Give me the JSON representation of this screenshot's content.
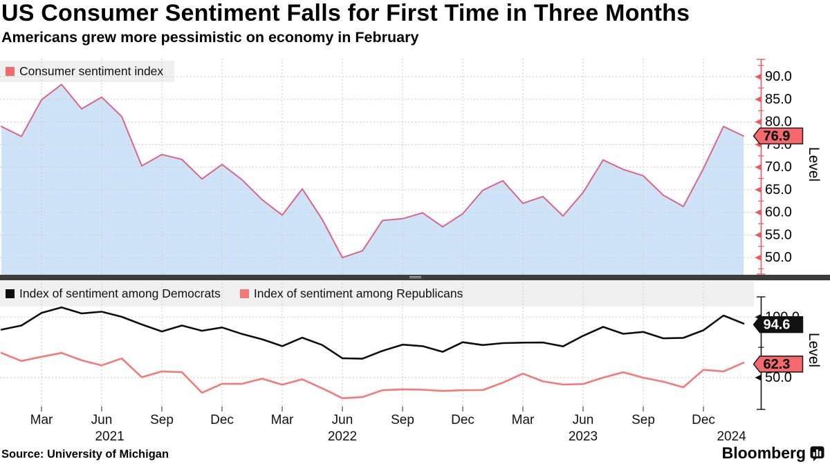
{
  "header": {
    "title": "US Consumer Sentiment Falls for First Time in Three Months",
    "subtitle": "Americans grew more pessimistic on economy in February"
  },
  "source_label": "Source: University of Michigan",
  "branding": {
    "logo_text": "Bloomberg",
    "logo_icon": "bloomberg-chart-bubble-icon"
  },
  "colors": {
    "sentiment_line": "#de6383",
    "sentiment_fill": "#cfe3f8",
    "democrats_line": "#0d0d0d",
    "republicans_line": "#f57878",
    "axis_red": "#ee575b",
    "axis_black": "#111111",
    "badge_red_bg": "#f3696c",
    "badge_black_bg": "#111111",
    "grid_line": "#c9c9c9",
    "legend_bg": "#f0f0f0",
    "divider": "#3d3d3d"
  },
  "x_axis": {
    "start": "2021-01",
    "end": "2024-02",
    "frequency": "monthly",
    "quarter_ticks": [
      {
        "month_index": 2,
        "label": "Mar"
      },
      {
        "month_index": 5,
        "label": "Jun"
      },
      {
        "month_index": 8,
        "label": "Sep"
      },
      {
        "month_index": 11,
        "label": "Dec"
      },
      {
        "month_index": 14,
        "label": "Mar"
      },
      {
        "month_index": 17,
        "label": "Jun"
      },
      {
        "month_index": 20,
        "label": "Sep"
      },
      {
        "month_index": 23,
        "label": "Dec"
      },
      {
        "month_index": 26,
        "label": "Mar"
      },
      {
        "month_index": 29,
        "label": "Jun"
      },
      {
        "month_index": 32,
        "label": "Sep"
      },
      {
        "month_index": 35,
        "label": "Dec"
      }
    ],
    "year_labels": [
      {
        "month_index": 5.4,
        "label": "2021"
      },
      {
        "month_index": 17.0,
        "label": "2022"
      },
      {
        "month_index": 29.0,
        "label": "2023"
      },
      {
        "month_index": 36.4,
        "label": "2024"
      }
    ]
  },
  "chart_data": [
    {
      "type": "area",
      "legend_label": "Consumer sentiment index",
      "ylabel": "Level",
      "ylim": [
        46.2,
        94.0
      ],
      "y_ticks": [
        50,
        55,
        60,
        65,
        70,
        75,
        80,
        85,
        90
      ],
      "y_minor_ticks": [
        47.5,
        52.5,
        57.5,
        62.5,
        67.5,
        72.5,
        77.5,
        82.5,
        87.5,
        92.5
      ],
      "last_value_badge": "76.9",
      "values": [
        79.0,
        76.8,
        84.9,
        88.3,
        82.9,
        85.5,
        81.2,
        70.3,
        72.8,
        71.7,
        67.4,
        70.6,
        67.2,
        62.8,
        59.4,
        65.2,
        58.4,
        50.0,
        51.5,
        58.2,
        58.6,
        59.9,
        56.8,
        59.7,
        64.9,
        67.0,
        62.0,
        63.5,
        59.2,
        64.4,
        71.6,
        69.5,
        68.1,
        63.8,
        61.3,
        69.7,
        79.0,
        76.9
      ]
    },
    {
      "type": "line",
      "ylabel": "Level",
      "ylim": [
        26.6,
        108.7
      ],
      "y_ticks": [
        50,
        100
      ],
      "y_minor_ticks": [
        75
      ],
      "series": [
        {
          "name": "Index of sentiment among Democrats",
          "color_key": "democrats_line",
          "badge": "94.6",
          "badge_bg_key": "badge_black_bg",
          "badge_fg": "#ffffff",
          "values": [
            89.6,
            93.0,
            103.4,
            108.0,
            103.0,
            104.4,
            100.2,
            93.9,
            88.1,
            93.0,
            88.7,
            91.4,
            86.0,
            81.6,
            76.0,
            83.0,
            76.9,
            66.0,
            65.6,
            72.1,
            77.2,
            76.0,
            71.3,
            79.2,
            76.9,
            78.5,
            78.9,
            79.0,
            75.8,
            84.5,
            91.9,
            86.2,
            87.7,
            82.4,
            82.8,
            89.1,
            101.3,
            94.6
          ]
        },
        {
          "name": "Index of sentiment among Republicans",
          "color_key": "republicans_line",
          "badge": "62.3",
          "badge_bg_key": "badge_red_bg",
          "badge_fg": "#000000",
          "values": [
            70.4,
            63.7,
            67.2,
            70.4,
            64.3,
            60.1,
            65.8,
            50.3,
            55.1,
            54.5,
            37.5,
            44.9,
            44.9,
            49.1,
            44.1,
            48.6,
            41.1,
            33.0,
            33.9,
            39.6,
            40.2,
            40.0,
            39.0,
            39.6,
            39.7,
            45.8,
            53.3,
            46.9,
            44.3,
            44.7,
            50.0,
            54.5,
            49.9,
            46.6,
            42.0,
            56.4,
            55.1,
            62.3
          ]
        }
      ]
    }
  ]
}
